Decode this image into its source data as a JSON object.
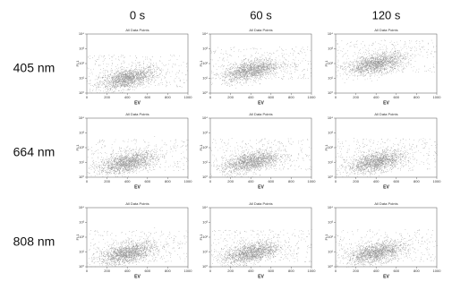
{
  "figure": {
    "columns": [
      "0 s",
      "60 s",
      "120 s"
    ],
    "rows": [
      "405 nm",
      "664 nm",
      "808 nm"
    ],
    "panel_title": "All Data Points",
    "x_label": "EV",
    "y_label": "FL1",
    "xticks": [
      "0",
      "200",
      "400",
      "600",
      "800",
      "1000"
    ],
    "yticks": [
      "10⁰",
      "10¹",
      "10²",
      "10³",
      "10⁴"
    ]
  }
}
